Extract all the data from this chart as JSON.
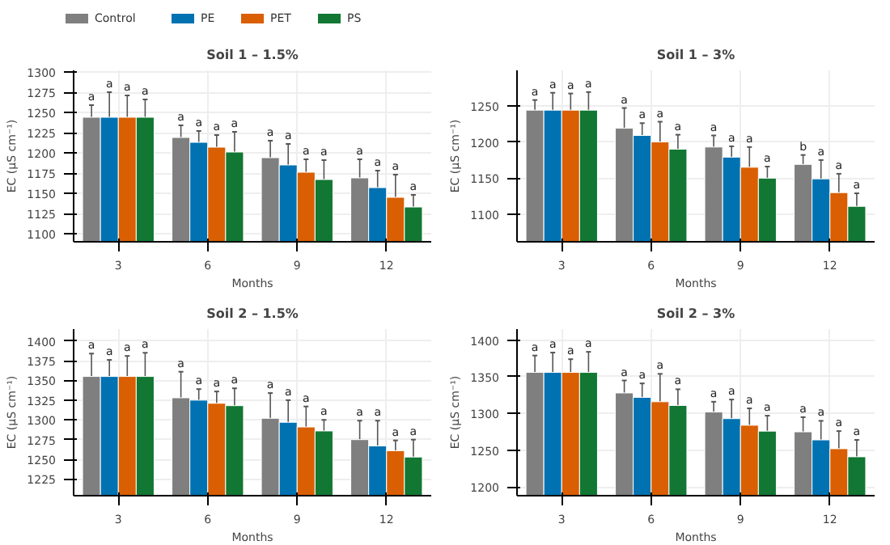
{
  "chart_data": [
    {
      "type": "bar",
      "title": "Soil 1 – 1.5%",
      "xlabel": "Months",
      "ylabel": "EC (μS cm⁻¹)",
      "categories": [
        "3",
        "6",
        "9",
        "12"
      ],
      "ylim": [
        1090,
        1302
      ],
      "yticks": [
        1100,
        1125,
        1150,
        1175,
        1200,
        1225,
        1250,
        1275,
        1300
      ],
      "grid": true,
      "legend": "top left",
      "series": [
        {
          "name": "Control",
          "color": "#7f7f7f",
          "values": [
            1244,
            1219,
            1194,
            1169
          ],
          "errors": [
            15,
            15,
            21,
            23
          ],
          "value_labels": [
            "a",
            "a",
            "a",
            "a"
          ]
        },
        {
          "name": "PE",
          "color": "#0072b2",
          "values": [
            1244,
            1213,
            1185,
            1157
          ],
          "errors": [
            31,
            14,
            26,
            21
          ],
          "value_labels": [
            "a",
            "a",
            "a",
            "a"
          ]
        },
        {
          "name": "PET",
          "color": "#d95f02",
          "values": [
            1244,
            1207,
            1176,
            1145
          ],
          "errors": [
            27,
            15,
            16,
            28
          ],
          "value_labels": [
            "a",
            "a",
            "a",
            "a"
          ]
        },
        {
          "name": "PS",
          "color": "#117733",
          "values": [
            1244,
            1201,
            1167,
            1133
          ],
          "errors": [
            22,
            25,
            24,
            15
          ],
          "value_labels": [
            "a",
            "a",
            "a",
            "a"
          ]
        }
      ]
    },
    {
      "type": "bar",
      "title": "Soil 1 – 3%",
      "xlabel": "Months",
      "ylabel": "EC (μS cm⁻¹)",
      "categories": [
        "3",
        "6",
        "9",
        "12"
      ],
      "ylim": [
        1062,
        1299
      ],
      "yticks": [
        1100,
        1150,
        1200,
        1250
      ],
      "grid": true,
      "series": [
        {
          "color": "#7f7f7f",
          "values": [
            1244,
            1219,
            1193,
            1169
          ],
          "errors": [
            14,
            28,
            16,
            13
          ],
          "value_labels": [
            "a",
            "a",
            "a",
            "b"
          ]
        },
        {
          "color": "#0072b2",
          "values": [
            1244,
            1209,
            1179,
            1149
          ],
          "errors": [
            24,
            17,
            15,
            26
          ],
          "value_labels": [
            "a",
            "a",
            "a",
            "a"
          ]
        },
        {
          "color": "#d95f02",
          "values": [
            1244,
            1200,
            1165,
            1130
          ],
          "errors": [
            23,
            28,
            28,
            26
          ],
          "value_labels": [
            "a",
            "a",
            "a",
            "a"
          ]
        },
        {
          "color": "#117733",
          "values": [
            1244,
            1190,
            1150,
            1111
          ],
          "errors": [
            25,
            20,
            16,
            18
          ],
          "value_labels": [
            "a",
            "a",
            "a",
            "a"
          ]
        }
      ]
    },
    {
      "type": "bar",
      "title": "Soil 2 – 1.5%",
      "xlabel": "Months",
      "ylabel": "EC (μS cm⁻¹)",
      "categories": [
        "3",
        "6",
        "9",
        "12"
      ],
      "ylim": [
        1204,
        1415
      ],
      "yticks": [
        1225,
        1250,
        1275,
        1300,
        1325,
        1350,
        1375,
        1400
      ],
      "grid": true,
      "series": [
        {
          "color": "#7f7f7f",
          "values": [
            1355,
            1328,
            1302,
            1275
          ],
          "errors": [
            29,
            33,
            32,
            24
          ],
          "value_labels": [
            "a",
            "a",
            "a",
            "a"
          ]
        },
        {
          "color": "#0072b2",
          "values": [
            1355,
            1325,
            1297,
            1267
          ],
          "errors": [
            21,
            14,
            28,
            32
          ],
          "value_labels": [
            "a",
            "a",
            "a",
            "a"
          ]
        },
        {
          "color": "#d95f02",
          "values": [
            1355,
            1321,
            1291,
            1261
          ],
          "errors": [
            26,
            15,
            26,
            13
          ],
          "value_labels": [
            "a",
            "a",
            "a",
            "a"
          ]
        },
        {
          "color": "#117733",
          "values": [
            1355,
            1318,
            1286,
            1253
          ],
          "errors": [
            30,
            22,
            14,
            22
          ],
          "value_labels": [
            "a",
            "a",
            "a",
            "a"
          ]
        }
      ]
    },
    {
      "type": "bar",
      "title": "Soil 2 – 3%",
      "xlabel": "Months",
      "ylabel": "EC (μS cm⁻¹)",
      "categories": [
        "3",
        "6",
        "9",
        "12"
      ],
      "ylim": [
        1188,
        1415
      ],
      "yticks": [
        1200,
        1250,
        1300,
        1350,
        1400
      ],
      "grid": true,
      "series": [
        {
          "color": "#7f7f7f",
          "values": [
            1356,
            1328,
            1302,
            1275
          ],
          "errors": [
            23,
            17,
            14,
            20
          ],
          "value_labels": [
            "a",
            "a",
            "a",
            "a"
          ]
        },
        {
          "color": "#0072b2",
          "values": [
            1356,
            1322,
            1293,
            1264
          ],
          "errors": [
            27,
            19,
            26,
            26
          ],
          "value_labels": [
            "a",
            "a",
            "a",
            "a"
          ]
        },
        {
          "color": "#d95f02",
          "values": [
            1356,
            1316,
            1284,
            1252
          ],
          "errors": [
            18,
            38,
            23,
            24
          ],
          "value_labels": [
            "a",
            "a",
            "a",
            "a"
          ]
        },
        {
          "color": "#117733",
          "values": [
            1356,
            1311,
            1276,
            1241
          ],
          "errors": [
            28,
            22,
            21,
            23
          ],
          "value_labels": [
            "a",
            "a",
            "a",
            "a"
          ]
        }
      ]
    }
  ]
}
